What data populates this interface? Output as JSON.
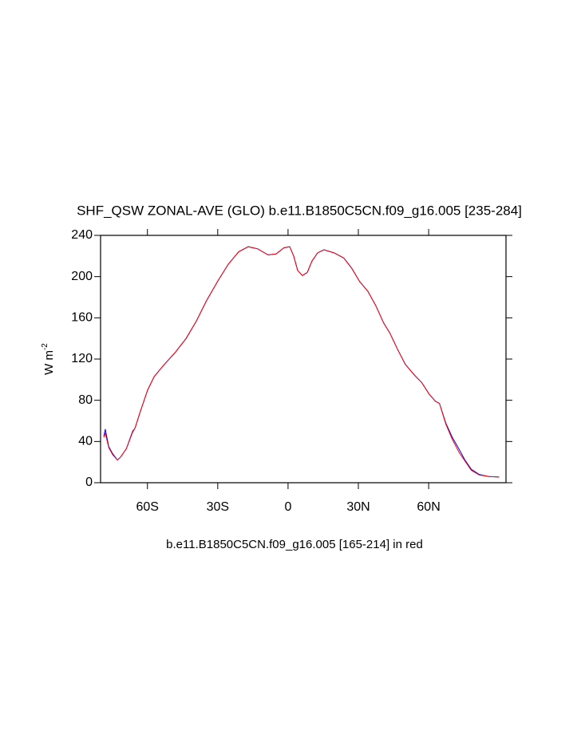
{
  "chart_data": {
    "type": "line",
    "title": "SHF_QSW ZONAL-AVE (GLO) b.e11.B1850C5CN.f09_g16.005 [235-284]",
    "subtitle": "b.e11.B1850C5CN.f09_g16.005 [165-214] in red",
    "y_label": "W m",
    "y_label_exponent": "-2",
    "xlim": [
      -80,
      93
    ],
    "xticks": [
      {
        "value": -60,
        "label": "60S"
      },
      {
        "value": -30,
        "label": "30S"
      },
      0,
      {
        "value": 30,
        "label": "30N"
      },
      {
        "value": 60,
        "label": "60N"
      }
    ],
    "ylim": [
      0,
      240
    ],
    "yticks": [
      0,
      40,
      80,
      120,
      160,
      200,
      240
    ],
    "x": [
      -78.6,
      -78,
      -76.5,
      -74.8,
      -72.8,
      -71.4,
      -69,
      -66.3,
      -65.3,
      -62.9,
      -59.9,
      -57.1,
      -52.7,
      -48.3,
      -43.5,
      -39.1,
      -34.7,
      -29.9,
      -25.5,
      -21.1,
      -17,
      -13,
      -8.5,
      -5.1,
      -1.7,
      0.7,
      2.4,
      4.1,
      6.1,
      8.2,
      10.2,
      12.6,
      15.3,
      19.7,
      23.8,
      27.2,
      30.6,
      34,
      37.4,
      40.8,
      43.5,
      46.6,
      50,
      53.7,
      57.1,
      60.2,
      62.9,
      64.6,
      67.3,
      70.1,
      73.1,
      75.5,
      78.2,
      81.6,
      85.7,
      90.1
    ],
    "series": [
      {
        "name": "b.e11.B1850C5CN.f09_g16.005 [235-284]",
        "color": "#0000ff",
        "values": [
          45,
          52,
          35,
          28,
          22,
          25,
          33,
          50,
          53,
          70,
          90,
          103,
          115,
          126,
          140,
          157,
          177,
          196,
          212,
          224,
          229,
          227,
          221,
          222,
          228,
          229,
          220,
          206,
          201,
          204,
          215,
          223,
          226,
          223,
          218,
          208,
          195,
          186,
          172,
          155,
          145,
          130,
          115,
          105,
          97,
          86,
          79,
          77,
          58,
          44,
          32,
          22,
          13,
          8,
          6,
          5.5
        ]
      },
      {
        "name": "b.e11.B1850C5CN.f09_g16.005 [165-214]",
        "color": "#ff0000",
        "values": [
          44,
          48,
          34,
          27,
          22,
          25,
          33,
          49,
          53,
          70,
          90,
          103,
          115,
          126,
          140,
          157,
          177,
          196,
          212,
          224,
          229,
          227,
          221,
          222,
          228,
          229,
          220,
          206,
          201,
          204,
          215,
          223,
          226,
          223,
          218,
          208,
          195,
          186,
          172,
          155,
          145,
          130,
          115,
          105,
          97,
          86,
          79,
          77,
          57,
          42,
          29,
          21,
          12,
          7.5,
          6,
          5.5
        ]
      }
    ]
  }
}
